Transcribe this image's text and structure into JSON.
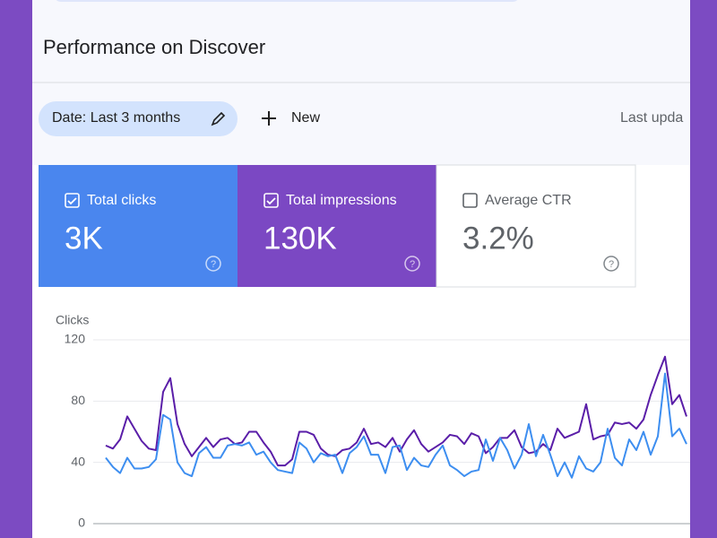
{
  "header": {
    "title": "Performance on Discover"
  },
  "toolbar": {
    "date_filter": "Date: Last 3 months",
    "new_button": "New",
    "last_updated": "Last upda"
  },
  "cards": [
    {
      "label": "Total clicks",
      "value": "3K",
      "checked": true,
      "color": "#4a86ee"
    },
    {
      "label": "Total impressions",
      "value": "130K",
      "checked": true,
      "color": "#7b48c3"
    },
    {
      "label": "Average CTR",
      "value": "3.2%",
      "checked": false,
      "color": "#ffffff"
    }
  ],
  "chart_data": {
    "type": "line",
    "y_label": "Clicks",
    "ylim": [
      0,
      120
    ],
    "yticks": [
      0,
      40,
      80,
      120
    ],
    "grid": true,
    "series": [
      {
        "name": "Total impressions",
        "color": "#5a1ea8",
        "values": [
          51,
          49,
          55,
          70,
          62,
          54,
          49,
          48,
          86,
          95,
          65,
          52,
          44,
          50,
          56,
          50,
          55,
          56,
          52,
          53,
          60,
          60,
          53,
          47,
          38,
          38,
          42,
          60,
          60,
          58,
          49,
          45,
          44,
          48,
          49,
          53,
          62,
          52,
          53,
          50,
          56,
          47,
          55,
          61,
          52,
          47,
          50,
          53,
          58,
          57,
          52,
          59,
          57,
          46,
          50,
          56,
          56,
          61,
          50,
          46,
          47,
          52,
          48,
          62,
          56,
          58,
          60,
          78,
          55,
          57,
          58,
          66,
          65,
          66,
          62,
          68,
          84,
          97,
          109,
          78,
          84,
          70
        ]
      },
      {
        "name": "Total clicks",
        "color": "#3d8ef0",
        "values": [
          43,
          37,
          33,
          43,
          36,
          36,
          37,
          42,
          71,
          68,
          40,
          33,
          31,
          46,
          50,
          43,
          43,
          51,
          52,
          51,
          53,
          45,
          47,
          40,
          35,
          34,
          33,
          53,
          49,
          40,
          46,
          44,
          45,
          33,
          46,
          50,
          57,
          45,
          45,
          33,
          50,
          51,
          35,
          43,
          38,
          37,
          45,
          51,
          38,
          35,
          31,
          34,
          35,
          55,
          41,
          56,
          48,
          36,
          45,
          65,
          44,
          58,
          45,
          31,
          40,
          30,
          44,
          36,
          34,
          40,
          62,
          43,
          38,
          55,
          48,
          60,
          45,
          57,
          98,
          57,
          62,
          52
        ]
      }
    ]
  }
}
